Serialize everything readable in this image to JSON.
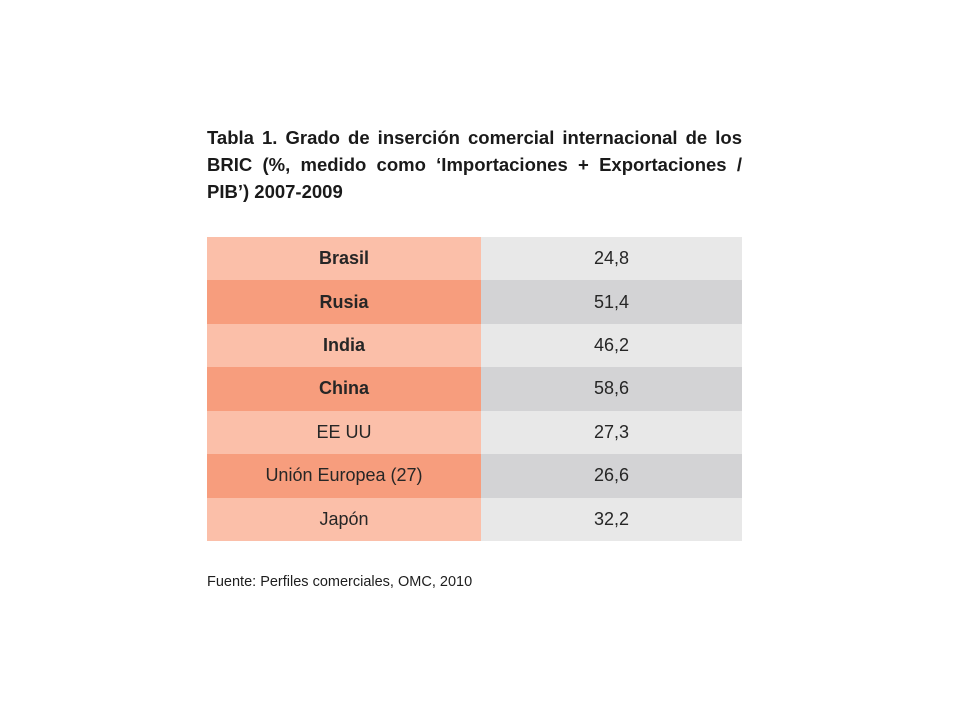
{
  "title_lines": [
    "Tabla 1. Grado de inserción comercial internacional de los",
    "BRIC (%, medido como ‘Importaciones + Exportaciones /",
    "PIB’) 2007-2009"
  ],
  "table": {
    "rows": [
      {
        "country": "Brasil",
        "value": "24,8",
        "bold": true
      },
      {
        "country": "Rusia",
        "value": "51,4",
        "bold": true
      },
      {
        "country": "India",
        "value": "46,2",
        "bold": true
      },
      {
        "country": "China",
        "value": "58,6",
        "bold": true
      },
      {
        "country": "EE UU",
        "value": "27,3",
        "bold": false
      },
      {
        "country": "Unión Europea (27)",
        "value": "26,6",
        "bold": false
      },
      {
        "country": "Japón",
        "value": "32,2",
        "bold": false
      }
    ]
  },
  "source": "Fuente: Perfiles comerciales, OMC, 2010",
  "colors": {
    "country_light": "#fbbfa9",
    "country_dark": "#f79d7d",
    "value_light": "#e8e8e8",
    "value_dark": "#d3d3d5",
    "text": "#262626"
  }
}
